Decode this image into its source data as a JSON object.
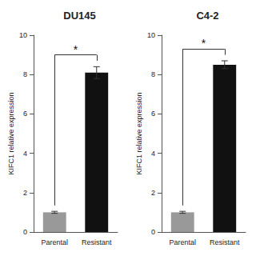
{
  "chart_data": [
    {
      "type": "bar",
      "title": "DU145",
      "categories": [
        "Parental",
        "Resistant"
      ],
      "values": [
        1.0,
        8.1
      ],
      "errors": [
        0.05,
        0.3
      ],
      "colors": [
        "#999999",
        "#111111"
      ],
      "ylabel": "KIFC1 relative expression",
      "ylim": [
        0,
        10
      ],
      "yticks": [
        0,
        2,
        4,
        6,
        8,
        10
      ],
      "grid": false,
      "annotations": [
        "*"
      ]
    },
    {
      "type": "bar",
      "title": "C4-2",
      "categories": [
        "Parental",
        "Resistant"
      ],
      "values": [
        1.0,
        8.5
      ],
      "errors": [
        0.05,
        0.2
      ],
      "colors": [
        "#999999",
        "#111111"
      ],
      "ylabel": "KIFC1 relative expression",
      "ylim": [
        0,
        10
      ],
      "yticks": [
        0,
        2,
        4,
        6,
        8,
        10
      ],
      "grid": false,
      "annotations": [
        "*"
      ]
    }
  ]
}
